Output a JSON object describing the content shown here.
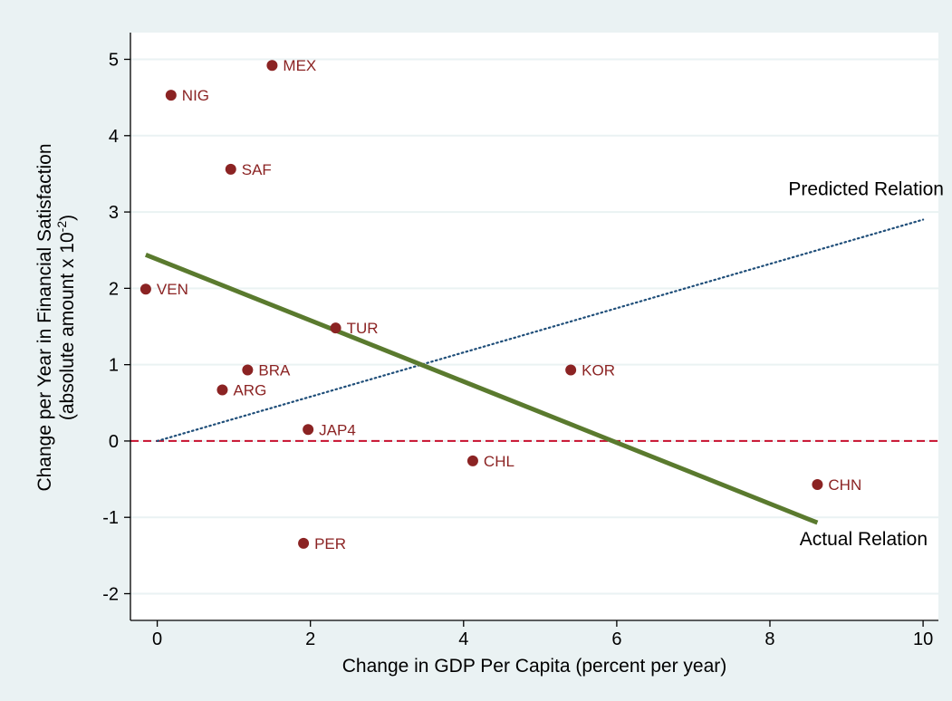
{
  "chart_data": {
    "type": "scatter",
    "xlabel": "Change in GDP Per Capita (percent per year)",
    "ylabel_line1": "Change per Year in Financial Satisfaction",
    "ylabel_line2_prefix": "(absolute amount x 10",
    "ylabel_line2_exponent": "-2",
    "ylabel_line2_suffix": ")",
    "xlim": [
      -0.35,
      10.2
    ],
    "ylim": [
      -2.35,
      5.35
    ],
    "xticks": [
      0,
      2,
      4,
      6,
      8,
      10
    ],
    "yticks": [
      -2,
      -1,
      0,
      1,
      2,
      3,
      4,
      5
    ],
    "grid": true,
    "points": [
      {
        "label": "MEX",
        "x": 1.5,
        "y": 4.92
      },
      {
        "label": "NIG",
        "x": 0.18,
        "y": 4.53
      },
      {
        "label": "SAF",
        "x": 0.96,
        "y": 3.56
      },
      {
        "label": "VEN",
        "x": -0.15,
        "y": 1.99
      },
      {
        "label": "TUR",
        "x": 2.33,
        "y": 1.48
      },
      {
        "label": "BRA",
        "x": 1.18,
        "y": 0.93
      },
      {
        "label": "KOR",
        "x": 5.4,
        "y": 0.93
      },
      {
        "label": "ARG",
        "x": 0.85,
        "y": 0.67
      },
      {
        "label": "JAP4",
        "x": 1.97,
        "y": 0.15
      },
      {
        "label": "CHL",
        "x": 4.12,
        "y": -0.26
      },
      {
        "label": "CHN",
        "x": 8.62,
        "y": -0.57
      },
      {
        "label": "PER",
        "x": 1.91,
        "y": -1.34
      }
    ],
    "actual_relation": {
      "label": "Actual Relation",
      "x": [
        -0.15,
        8.62
      ],
      "y": [
        2.44,
        -1.07
      ]
    },
    "predicted_relation": {
      "label": "Predicted Relation",
      "x": [
        0,
        10
      ],
      "y": [
        0,
        2.9
      ]
    },
    "zero_line": {
      "y": 0
    },
    "colors": {
      "outer_background": "#eaf2f3",
      "plot_background": "#ffffff",
      "grid": "#eaf2f3",
      "points": "#8b2323",
      "actual_line": "#5a7a2e",
      "predicted_line": "#1f4e79",
      "zero_line": "#c8102e"
    }
  }
}
